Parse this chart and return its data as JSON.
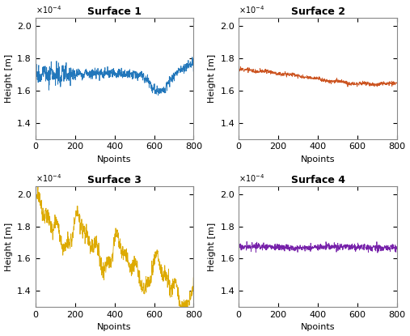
{
  "subplot_titles": [
    "Surface 1",
    "Surface 2",
    "Surface 3",
    "Surface 4"
  ],
  "colors": [
    "#2277bb",
    "#cc5522",
    "#ddaa00",
    "#7722aa"
  ],
  "xlim": [
    0,
    800
  ],
  "ylim": [
    0.00013,
    0.000205
  ],
  "yticks": [
    0.00014,
    0.00016,
    0.00018,
    0.0002
  ],
  "xticks": [
    0,
    200,
    400,
    600,
    800
  ],
  "xlabel": "Npoints",
  "ylabel": "Height [m]",
  "n_points": 800,
  "background_color": "#ffffff",
  "title_fontsize": 9,
  "label_fontsize": 8,
  "tick_fontsize": 8
}
